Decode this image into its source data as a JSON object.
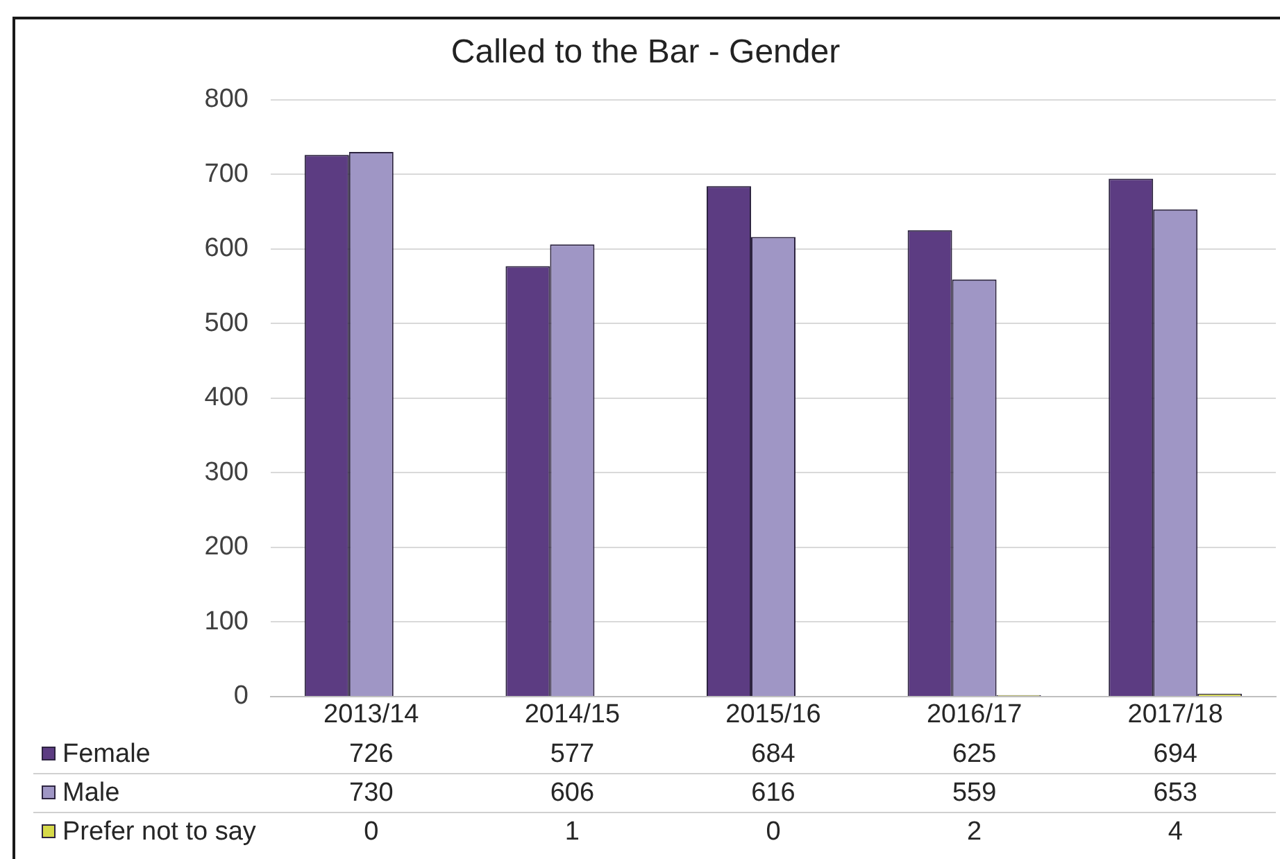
{
  "chart_data": {
    "type": "bar",
    "title": "Called to the Bar - Gender",
    "categories": [
      "2013/14",
      "2014/15",
      "2015/16",
      "2016/17",
      "2017/18"
    ],
    "series": [
      {
        "name": "Female",
        "color": "#5c3c82",
        "values": [
          726,
          577,
          684,
          625,
          694
        ]
      },
      {
        "name": "Male",
        "color": "#9f96c5",
        "values": [
          730,
          606,
          616,
          559,
          653
        ]
      },
      {
        "name": "Prefer not to say",
        "color": "#d6d94a",
        "values": [
          0,
          1,
          0,
          2,
          4
        ]
      }
    ],
    "ylim": [
      0,
      800
    ],
    "yticks": [
      0,
      100,
      200,
      300,
      400,
      500,
      600,
      700,
      800
    ],
    "grid": "y",
    "legend": "bottom",
    "data_labels": true
  }
}
